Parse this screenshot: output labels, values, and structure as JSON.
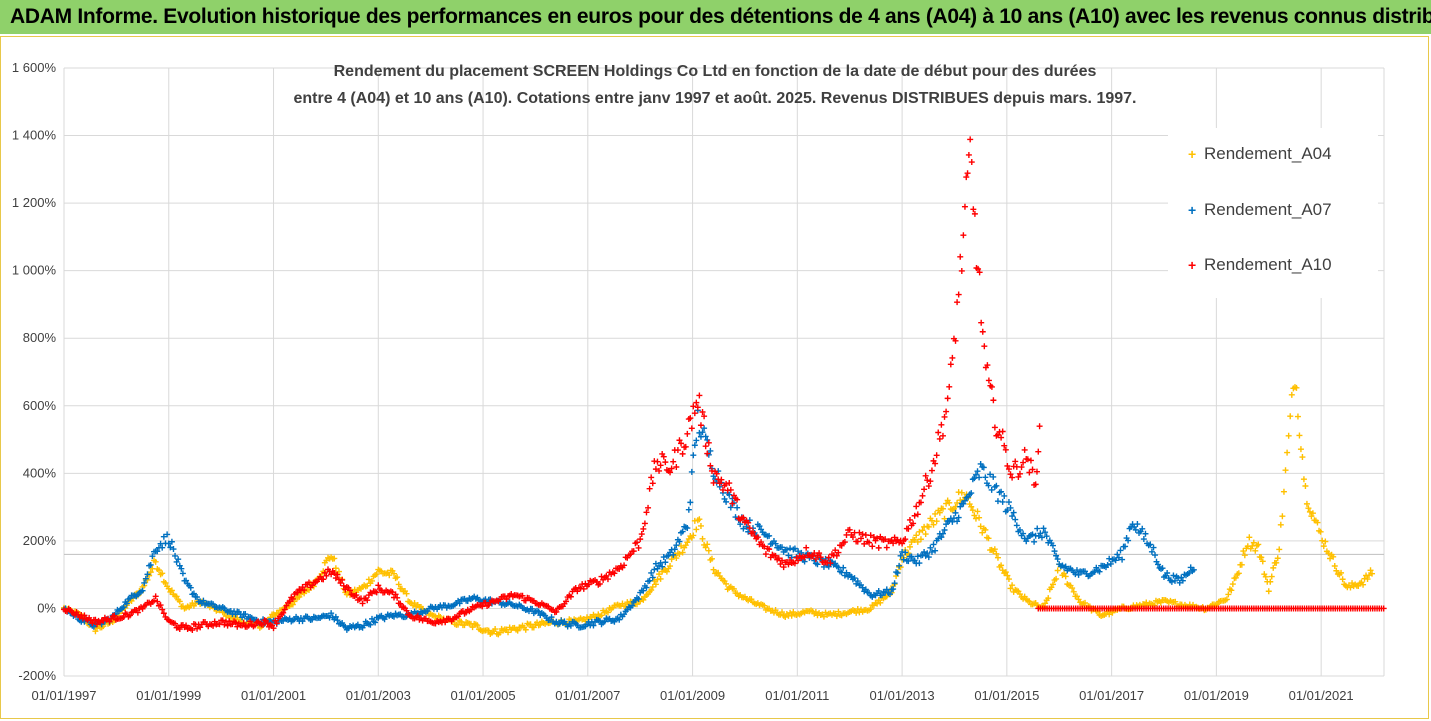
{
  "banner": {
    "title": "ADAM Informe. Evolution historique des performances en euros pour des détentions de 4 ans (A04) à 10 ans (A10) avec les revenus connus distribués"
  },
  "colors": {
    "banner_bg": "#8fd16a",
    "A04": "#ffc000",
    "A07": "#0070c0",
    "A10": "#ff0000",
    "grid": "#d9d9d9"
  },
  "chart_data": {
    "type": "scatter",
    "title_line1": "Rendement du placement SCREEN Holdings Co Ltd en fonction de la date de début pour des durées",
    "title_line2": "entre 4 (A04) et 10 ans (A10). Cotations entre janv 1997 et août. 2025. Revenus DISTRIBUES depuis mars. 1997.",
    "xlabel": "",
    "ylabel": "",
    "ylim": [
      -200,
      1600
    ],
    "xlim": [
      1997.0,
      2022.2
    ],
    "grid": true,
    "legend_position": "right",
    "y_ticks": [
      "1 600%",
      "1 400%",
      "1 200%",
      "1 000%",
      "800%",
      "600%",
      "400%",
      "200%",
      "0%",
      "-200%"
    ],
    "y_tick_values": [
      1600,
      1400,
      1200,
      1000,
      800,
      600,
      400,
      200,
      0,
      -200
    ],
    "x_ticks": [
      "01/01/1997",
      "01/01/1999",
      "01/01/2001",
      "01/01/2003",
      "01/01/2005",
      "01/01/2007",
      "01/01/2009",
      "01/01/2011",
      "01/01/2013",
      "01/01/2015",
      "01/01/2017",
      "01/01/2019",
      "01/01/2021"
    ],
    "x_tick_values": [
      1997,
      1999,
      2001,
      2003,
      2005,
      2007,
      2009,
      2011,
      2013,
      2015,
      2017,
      2019,
      2021
    ],
    "series": [
      {
        "name": "Rendement_A04",
        "color": "#ffc000",
        "x": [
          1997.0,
          1997.3,
          1997.6,
          1997.9,
          1998.2,
          1998.5,
          1998.75,
          1999.0,
          1999.3,
          1999.6,
          2000.0,
          2000.4,
          2000.8,
          2001.0,
          2001.4,
          2001.8,
          2002.1,
          2002.4,
          2002.7,
          2003.0,
          2003.3,
          2003.6,
          2004.0,
          2004.4,
          2004.8,
          2005.2,
          2005.6,
          2006.0,
          2006.4,
          2006.8,
          2007.2,
          2007.6,
          2008.0,
          2008.3,
          2008.6,
          2008.9,
          2009.1,
          2009.4,
          2009.7,
          2010.0,
          2010.4,
          2010.8,
          2011.2,
          2011.6,
          2012.0,
          2012.4,
          2012.8,
          2013.0,
          2013.3,
          2013.6,
          2013.9,
          2014.2,
          2014.5,
          2014.8,
          2015.1,
          2015.4,
          2015.7,
          2016.0,
          2016.4,
          2016.8,
          2017.2,
          2017.6,
          2018.0,
          2018.4,
          2018.8,
          2019.2,
          2019.4,
          2019.6,
          2019.8,
          2020.0,
          2020.2,
          2020.35,
          2020.5,
          2020.7,
          2020.9,
          2021.2,
          2021.5,
          2021.8,
          2022.0
        ],
        "values": [
          0,
          -20,
          -60,
          -40,
          10,
          60,
          140,
          60,
          0,
          20,
          -10,
          -40,
          -50,
          -20,
          20,
          80,
          160,
          40,
          60,
          110,
          100,
          20,
          -20,
          -40,
          -50,
          -70,
          -60,
          -50,
          -40,
          -40,
          -20,
          10,
          20,
          80,
          140,
          200,
          260,
          120,
          60,
          30,
          0,
          -20,
          -10,
          -20,
          -10,
          0,
          50,
          150,
          210,
          260,
          300,
          340,
          250,
          150,
          60,
          20,
          0,
          120,
          20,
          -20,
          0,
          10,
          20,
          10,
          0,
          30,
          100,
          200,
          180,
          60,
          180,
          450,
          700,
          350,
          250,
          150,
          60,
          80,
          110
        ]
      },
      {
        "name": "Rendement_A07",
        "color": "#0070c0",
        "x": [
          1997.0,
          1997.3,
          1997.6,
          1997.9,
          1998.2,
          1998.5,
          1998.75,
          1999.0,
          1999.3,
          1999.6,
          2000.0,
          2000.4,
          2000.8,
          2001.0,
          2001.4,
          2001.8,
          2002.1,
          2002.4,
          2002.7,
          2003.0,
          2003.3,
          2003.6,
          2004.0,
          2004.4,
          2004.8,
          2005.2,
          2005.6,
          2006.0,
          2006.4,
          2006.8,
          2007.2,
          2007.6,
          2008.0,
          2008.3,
          2008.6,
          2008.9,
          2009.1,
          2009.4,
          2009.7,
          2010.0,
          2010.4,
          2010.8,
          2011.2,
          2011.6,
          2012.0,
          2012.4,
          2012.8,
          2013.0,
          2013.3,
          2013.6,
          2013.9,
          2014.2,
          2014.5,
          2014.8,
          2015.1,
          2015.4,
          2015.7,
          2016.0,
          2016.4,
          2016.8,
          2017.2,
          2017.4,
          2017.8,
          2018.0,
          2018.3,
          2018.6
        ],
        "values": [
          0,
          -30,
          -50,
          -30,
          20,
          60,
          180,
          210,
          80,
          20,
          0,
          -20,
          -40,
          -40,
          -30,
          -30,
          -20,
          -60,
          -50,
          -30,
          -20,
          -20,
          0,
          10,
          30,
          20,
          10,
          -10,
          -40,
          -50,
          -40,
          -30,
          40,
          120,
          160,
          250,
          560,
          420,
          320,
          250,
          220,
          170,
          150,
          130,
          100,
          40,
          50,
          160,
          140,
          180,
          250,
          310,
          410,
          350,
          280,
          200,
          230,
          130,
          100,
          120,
          160,
          260,
          170,
          100,
          80,
          130
        ]
      },
      {
        "name": "Rendement_A10",
        "color": "#ff0000",
        "x": [
          1997.0,
          1997.3,
          1997.6,
          1997.9,
          1998.2,
          1998.5,
          1998.75,
          1999.0,
          1999.3,
          1999.6,
          2000.0,
          2000.4,
          2000.8,
          2001.0,
          2001.4,
          2001.8,
          2002.1,
          2002.4,
          2002.7,
          2003.0,
          2003.3,
          2003.6,
          2004.0,
          2004.4,
          2004.8,
          2005.2,
          2005.6,
          2006.0,
          2006.4,
          2006.8,
          2007.2,
          2007.6,
          2008.0,
          2008.3,
          2008.6,
          2008.9,
          2009.1,
          2009.4,
          2009.7,
          2010.0,
          2010.4,
          2010.8,
          2011.2,
          2011.6,
          2012.0,
          2012.4,
          2012.8,
          2013.0,
          2013.3,
          2013.6,
          2013.9,
          2014.2,
          2014.3,
          2014.45,
          2014.6,
          2014.8,
          2015.1,
          2015.4,
          2015.55,
          2015.65
        ],
        "values": [
          0,
          -20,
          -40,
          -30,
          -20,
          0,
          30,
          -40,
          -60,
          -50,
          -40,
          -50,
          -40,
          -50,
          40,
          80,
          110,
          60,
          20,
          60,
          40,
          -20,
          -40,
          -30,
          0,
          20,
          40,
          20,
          -10,
          60,
          80,
          120,
          200,
          430,
          420,
          520,
          620,
          400,
          350,
          250,
          170,
          130,
          170,
          140,
          220,
          200,
          190,
          200,
          300,
          430,
          630,
          1150,
          1350,
          1000,
          700,
          550,
          400,
          450,
          350,
          650
        ]
      },
      {
        "name": "Rendement_A10_flat",
        "color": "#ff0000",
        "x_start": 2015.6,
        "x_end": 2022.2,
        "value": 0
      }
    ]
  },
  "legend": [
    {
      "name": "Rendement_A04",
      "color": "#ffc000"
    },
    {
      "name": "Rendement_A07",
      "color": "#0070c0"
    },
    {
      "name": "Rendement_A10",
      "color": "#ff0000"
    }
  ]
}
